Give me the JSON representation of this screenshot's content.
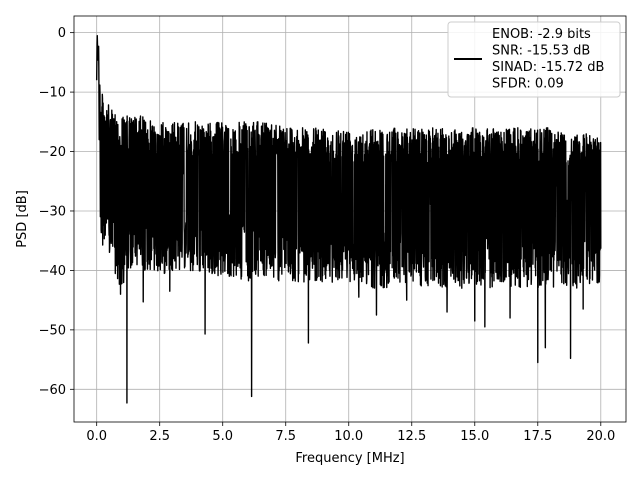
{
  "chart_data": {
    "type": "line",
    "title": "",
    "xlabel": "Frequency [MHz]",
    "ylabel": "PSD [dB]",
    "xlim": [
      -0.9,
      21.0
    ],
    "ylim": [
      -65.5,
      2.8
    ],
    "xticks": [
      0.0,
      2.5,
      5.0,
      7.5,
      10.0,
      12.5,
      15.0,
      17.5,
      20.0
    ],
    "xtick_labels": [
      "0.0",
      "2.5",
      "5.0",
      "7.5",
      "10.0",
      "12.5",
      "15.0",
      "17.5",
      "20.0"
    ],
    "yticks": [
      0,
      -10,
      -20,
      -30,
      -40,
      -50,
      -60
    ],
    "ytick_labels": [
      "0",
      "−10",
      "−20",
      "−30",
      "−40",
      "−50",
      "−60"
    ],
    "grid": true,
    "legend": {
      "placement": "upper-right",
      "entries": [
        "ENOB: -2.9 bits",
        "SNR: -15.53 dB",
        "SINAD: -15.72 dB",
        "SFDR: 0.09"
      ]
    },
    "series": [
      {
        "color": "#000000",
        "x": [
          0.0,
          0.02,
          0.05,
          0.08,
          0.1,
          0.15,
          0.2,
          0.3,
          0.45,
          0.6,
          0.8,
          1.0,
          1.2,
          1.5,
          1.85,
          2.2,
          2.6,
          3.0,
          3.5,
          4.0,
          4.3,
          4.8,
          5.3,
          6.0,
          6.15,
          6.7,
          7.3,
          8.0,
          8.4,
          9.0,
          9.7,
          10.3,
          11.0,
          11.5,
          12.2,
          13.0,
          13.8,
          14.5,
          15.0,
          15.6,
          16.2,
          16.8,
          17.5,
          18.0,
          18.5,
          18.8,
          19.2,
          19.6,
          20.0
        ],
        "y": [
          -8,
          0,
          -5,
          -2,
          -18,
          -10,
          -22,
          -12,
          -20,
          -15,
          -25,
          -18,
          -14,
          -22,
          -16,
          -24,
          -17,
          -21,
          -18,
          -26,
          -19,
          -23,
          -17,
          -25,
          -20,
          -22,
          -18,
          -24,
          -19,
          -23,
          -20,
          -25,
          -19,
          -22,
          -21,
          -24,
          -20,
          -23,
          -21,
          -25,
          -20,
          -22,
          -24,
          -21,
          -23,
          -20,
          -22,
          -21,
          -19
        ],
        "upper_envelope": [
          -8,
          0,
          -5,
          -2,
          -6,
          -8,
          -10,
          -11,
          -12,
          -13,
          -13,
          -14,
          -14,
          -14,
          -14,
          -15,
          -15,
          -15,
          -15,
          -15,
          -15,
          -15,
          -15,
          -15,
          -15,
          -15,
          -15,
          -16,
          -16,
          -16,
          -16,
          -16,
          -16,
          -16,
          -16,
          -16,
          -16,
          -16,
          -16,
          -16,
          -16,
          -16,
          -16,
          -16,
          -17,
          -17,
          -17,
          -17,
          -17
        ],
        "lower_envelope": [
          -8,
          -15,
          -22,
          -25,
          -30,
          -33,
          -35,
          -37,
          -38,
          -38,
          -42,
          -44,
          -41,
          -39,
          -40,
          -40,
          -41,
          -40,
          -40,
          -41,
          -40,
          -41,
          -41,
          -42,
          -41,
          -41,
          -42,
          -42,
          -42,
          -42,
          -42,
          -42,
          -43,
          -43,
          -42,
          -43,
          -43,
          -43,
          -43,
          -43,
          -43,
          -43,
          -43,
          -43,
          -43,
          -43,
          -43,
          -43,
          -42
        ],
        "notable_dips": [
          {
            "x": 1.2,
            "y": -62.3
          },
          {
            "x": 6.15,
            "y": -61.2
          },
          {
            "x": 4.3,
            "y": -50.7
          },
          {
            "x": 8.4,
            "y": -52.2
          },
          {
            "x": 17.5,
            "y": -55.5
          },
          {
            "x": 17.8,
            "y": -53.0
          },
          {
            "x": 18.8,
            "y": -54.8
          },
          {
            "x": 15.0,
            "y": -48.5
          },
          {
            "x": 15.4,
            "y": -49.5
          },
          {
            "x": 1.85,
            "y": -45.3
          },
          {
            "x": 0.95,
            "y": -44.0
          },
          {
            "x": 2.9,
            "y": -43.5
          },
          {
            "x": 11.1,
            "y": -47.5
          },
          {
            "x": 13.9,
            "y": -47.0
          },
          {
            "x": 16.4,
            "y": -48.0
          },
          {
            "x": 19.3,
            "y": -46.5
          },
          {
            "x": 10.4,
            "y": -44.5
          },
          {
            "x": 12.3,
            "y": -45.0
          }
        ]
      }
    ]
  }
}
